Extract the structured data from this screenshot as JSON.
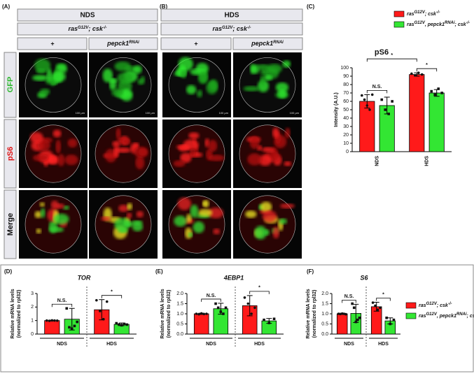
{
  "panels": {
    "labels": [
      "(A)",
      "(B)",
      "(C)",
      "(D)",
      "(E)",
      "(F)"
    ],
    "conditions": [
      "NDS",
      "HDS"
    ],
    "genotype": [
      "ras",
      "G12V",
      "; csk",
      "-/-"
    ],
    "columns": [
      "+",
      [
        "pepck1",
        "RNAi"
      ]
    ],
    "rows": [
      "GFP",
      "pS6",
      "Merge"
    ],
    "scale_bar": "100 µm"
  },
  "chart_data": [
    {
      "type": "bar",
      "title": "pS6",
      "ylabel": [
        "Intensity (A.U.)"
      ],
      "categories": [
        "NDS",
        "HDS"
      ],
      "ylim": [
        0,
        100
      ],
      "yticks": [
        0,
        10,
        20,
        30,
        40,
        50,
        60,
        70,
        80,
        90,
        100
      ],
      "legend": true,
      "series": [
        {
          "name": [
            "ras",
            "G12V",
            "; csk",
            "-/-"
          ],
          "color": "#ff1a1a",
          "values": [
            60,
            92
          ],
          "errors": [
            8,
            2
          ],
          "points": [
            [
              67,
              62,
              55,
              50,
              68
            ],
            [
              93,
              91,
              94,
              92
            ]
          ]
        },
        {
          "name": [
            "ras",
            "G12V",
            ", pepck1",
            "RNAi",
            "; csk",
            "-/-"
          ],
          "color": "#33e633",
          "values": [
            55,
            70
          ],
          "errors": [
            10,
            4
          ],
          "points": [
            [
              62,
              50,
              45,
              60
            ],
            [
              72,
              68,
              75,
              70
            ]
          ]
        }
      ],
      "annotations": [
        "N.S.",
        "*",
        "*"
      ]
    },
    {
      "type": "bar",
      "title": "TOR",
      "ylabel": [
        "Relative mRNA levels",
        "(normalized to rpl32)"
      ],
      "categories": [
        "NDS",
        "HDS"
      ],
      "ylim": [
        0,
        3
      ],
      "yticks": [
        0,
        1,
        2,
        3
      ],
      "legend": false,
      "series": [
        {
          "color": "#ff1a1a",
          "values": [
            1.0,
            1.8
          ],
          "errors": [
            0.03,
            0.75
          ],
          "points": [
            [
              1.0,
              0.98,
              1.01,
              1.0,
              0.99
            ],
            [
              2.5,
              1.7,
              1.1,
              2.4
            ]
          ]
        },
        {
          "color": "#33e633",
          "values": [
            1.1,
            0.72
          ],
          "errors": [
            0.8,
            0.1
          ],
          "points": [
            [
              1.9,
              0.5,
              0.4,
              0.6,
              0.9
            ],
            [
              0.8,
              0.7,
              0.65,
              0.75,
              0.7
            ]
          ]
        }
      ],
      "annotations": [
        "N.S.",
        "*"
      ]
    },
    {
      "type": "bar",
      "title": "4EBP1",
      "ylabel": [
        "Relative mRNA levels",
        "(normalized to rpl32)"
      ],
      "categories": [
        "NDS",
        "HDS"
      ],
      "ylim": [
        0,
        2.0
      ],
      "yticks": [
        {
          "value": 0,
          "label": "0.0"
        },
        {
          "value": 0.5,
          "label": "0.5"
        },
        {
          "value": 1.0,
          "label": "1.0"
        },
        {
          "value": 1.5,
          "label": "1.5"
        },
        {
          "value": 2.0,
          "label": "2.0"
        }
      ],
      "legend": false,
      "series": [
        {
          "color": "#ff1a1a",
          "values": [
            1.0,
            1.4
          ],
          "errors": [
            0.03,
            0.5
          ],
          "points": [
            [
              1.0,
              0.98,
              1.02,
              0.99,
              1.0
            ],
            [
              1.8,
              1.5,
              1.0,
              1.3
            ]
          ]
        },
        {
          "color": "#33e633",
          "values": [
            1.25,
            0.65
          ],
          "errors": [
            0.27,
            0.12
          ],
          "points": [
            [
              1.5,
              1.3,
              1.1,
              1.0,
              1.3
            ],
            [
              0.7,
              0.55,
              0.75
            ]
          ]
        }
      ],
      "annotations": [
        "N.S.",
        "*"
      ]
    },
    {
      "type": "bar",
      "title": "S6",
      "ylabel": [
        "Relative mRNA levels",
        "(normalized to rpl32)"
      ],
      "categories": [
        "NDS",
        "HDS"
      ],
      "ylim": [
        0,
        2.0
      ],
      "yticks": [
        {
          "value": 0,
          "label": "0.0"
        },
        {
          "value": 0.5,
          "label": "0.5"
        },
        {
          "value": 1.0,
          "label": "1.0"
        },
        {
          "value": 1.5,
          "label": "1.5"
        },
        {
          "value": 2.0,
          "label": "2.0"
        }
      ],
      "legend": true,
      "series": [
        {
          "name": [
            "ras",
            "G12V",
            "; csk",
            "-/-"
          ],
          "color": "#ff1a1a",
          "values": [
            1.0,
            1.35
          ],
          "errors": [
            0.02,
            0.22
          ],
          "points": [
            [
              1.0,
              0.99,
              1.01,
              1.0,
              0.98
            ],
            [
              1.55,
              1.4,
              1.2,
              1.3
            ]
          ]
        },
        {
          "name": [
            "ras",
            "G12V",
            ", pepck1",
            "RNAi",
            "; csk",
            "-/-"
          ],
          "color": "#33e633",
          "values": [
            1.02,
            0.65
          ],
          "errors": [
            0.45,
            0.15
          ],
          "points": [
            [
              1.5,
              1.3,
              0.6,
              0.7,
              0.8
            ],
            [
              0.8,
              0.5,
              0.7
            ]
          ]
        }
      ],
      "annotations": [
        "N.S.",
        "*"
      ]
    }
  ]
}
